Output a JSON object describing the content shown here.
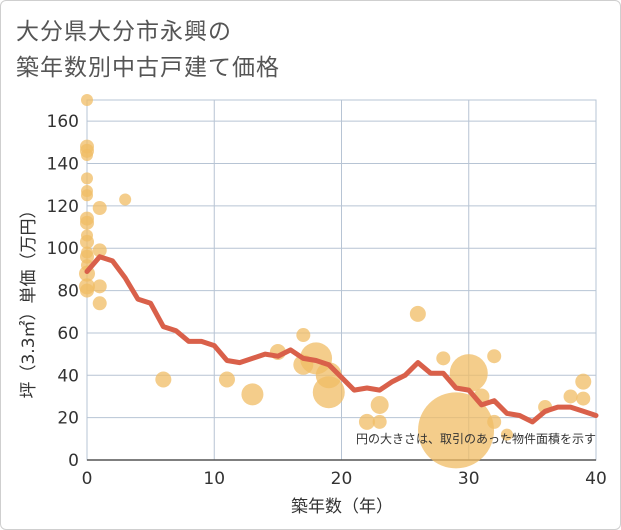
{
  "title_line1": "大分県大分市永興の",
  "title_line2": "築年数別中古戸建て価格",
  "chart_data": {
    "type": "scatter",
    "xlabel": "築年数（年）",
    "ylabel": "坪（3.3㎡）単価（万円）",
    "xlim": [
      0,
      40
    ],
    "ylim": [
      0,
      170
    ],
    "xticks": [
      0,
      10,
      20,
      30,
      40
    ],
    "yticks": [
      0,
      20,
      40,
      60,
      80,
      100,
      120,
      140,
      160
    ],
    "note": "円の大きさは、取引のあった物件面積を示す",
    "colors": {
      "bubble": "#f0bc64",
      "line": "#d9604a",
      "grid": "#b7c4d4"
    },
    "scatter": [
      {
        "x": 0,
        "y": 170,
        "size": 6
      },
      {
        "x": 0,
        "y": 148,
        "size": 7
      },
      {
        "x": 0,
        "y": 146,
        "size": 7
      },
      {
        "x": 0,
        "y": 144,
        "size": 6
      },
      {
        "x": 0,
        "y": 133,
        "size": 6
      },
      {
        "x": 0,
        "y": 127,
        "size": 6
      },
      {
        "x": 0,
        "y": 125,
        "size": 6
      },
      {
        "x": 0,
        "y": 114,
        "size": 7
      },
      {
        "x": 0,
        "y": 112,
        "size": 7
      },
      {
        "x": 0,
        "y": 106,
        "size": 6
      },
      {
        "x": 0,
        "y": 103,
        "size": 7
      },
      {
        "x": 0,
        "y": 98,
        "size": 6
      },
      {
        "x": 0,
        "y": 96,
        "size": 7
      },
      {
        "x": 0,
        "y": 92,
        "size": 6
      },
      {
        "x": 0,
        "y": 88,
        "size": 8
      },
      {
        "x": 0,
        "y": 82,
        "size": 8
      },
      {
        "x": 0,
        "y": 80,
        "size": 7
      },
      {
        "x": 1,
        "y": 119,
        "size": 7
      },
      {
        "x": 1,
        "y": 99,
        "size": 7
      },
      {
        "x": 1,
        "y": 82,
        "size": 7
      },
      {
        "x": 1,
        "y": 74,
        "size": 7
      },
      {
        "x": 3,
        "y": 123,
        "size": 6
      },
      {
        "x": 6,
        "y": 38,
        "size": 8
      },
      {
        "x": 11,
        "y": 38,
        "size": 8
      },
      {
        "x": 13,
        "y": 31,
        "size": 11
      },
      {
        "x": 15,
        "y": 51,
        "size": 8
      },
      {
        "x": 17,
        "y": 59,
        "size": 7
      },
      {
        "x": 17,
        "y": 45,
        "size": 10
      },
      {
        "x": 18,
        "y": 48,
        "size": 16
      },
      {
        "x": 19,
        "y": 40,
        "size": 13
      },
      {
        "x": 19,
        "y": 32,
        "size": 16
      },
      {
        "x": 22,
        "y": 18,
        "size": 8
      },
      {
        "x": 23,
        "y": 26,
        "size": 9
      },
      {
        "x": 23,
        "y": 18,
        "size": 7
      },
      {
        "x": 26,
        "y": 69,
        "size": 8
      },
      {
        "x": 28,
        "y": 48,
        "size": 7
      },
      {
        "x": 29,
        "y": 14,
        "size": 38
      },
      {
        "x": 30,
        "y": 41,
        "size": 19
      },
      {
        "x": 31,
        "y": 30,
        "size": 8
      },
      {
        "x": 32,
        "y": 49,
        "size": 7
      },
      {
        "x": 32,
        "y": 18,
        "size": 7
      },
      {
        "x": 33,
        "y": 12,
        "size": 6
      },
      {
        "x": 36,
        "y": 25,
        "size": 7
      },
      {
        "x": 38,
        "y": 30,
        "size": 7
      },
      {
        "x": 39,
        "y": 37,
        "size": 8
      },
      {
        "x": 39,
        "y": 29,
        "size": 7
      }
    ],
    "line": {
      "x": [
        0,
        1,
        2,
        3,
        4,
        5,
        6,
        7,
        8,
        9,
        10,
        11,
        12,
        13,
        14,
        15,
        16,
        17,
        18,
        19,
        20,
        21,
        22,
        23,
        24,
        25,
        26,
        27,
        28,
        29,
        30,
        31,
        32,
        33,
        34,
        35,
        36,
        37,
        38,
        39,
        40
      ],
      "y": [
        89,
        96,
        94,
        86,
        76,
        74,
        63,
        61,
        56,
        56,
        54,
        47,
        46,
        48,
        50,
        49,
        52,
        48,
        47,
        45,
        39,
        33,
        34,
        33,
        37,
        40,
        46,
        41,
        41,
        34,
        33,
        26,
        28,
        22,
        21,
        18,
        23,
        25,
        25,
        23,
        21
      ]
    }
  }
}
